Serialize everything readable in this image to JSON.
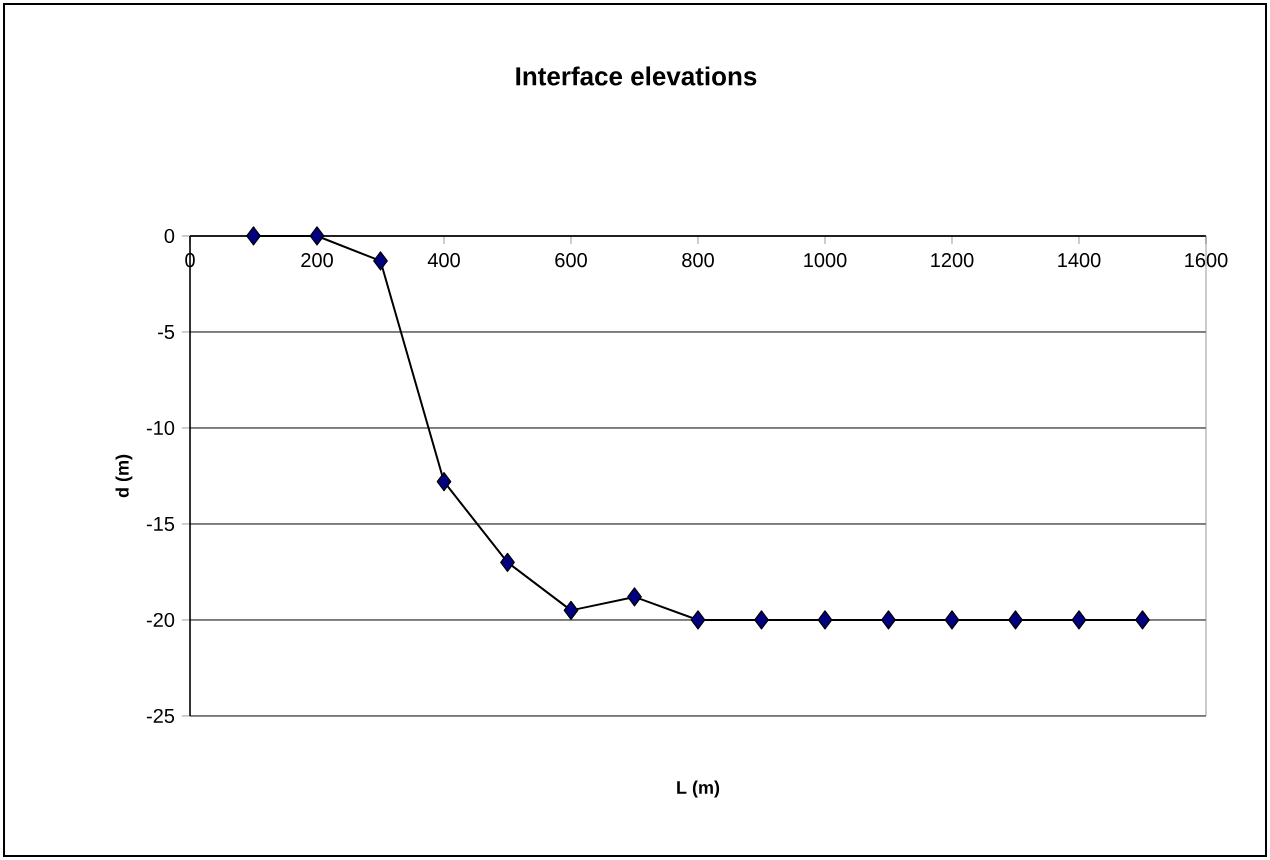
{
  "chart_data": {
    "type": "line",
    "title": "Interface elevations",
    "xlabel": "L (m)",
    "ylabel": "d (m)",
    "x": [
      100,
      200,
      300,
      400,
      500,
      600,
      700,
      800,
      900,
      1000,
      1100,
      1200,
      1300,
      1400,
      1500
    ],
    "series": [
      {
        "color": "#000080",
        "values": [
          0,
          0,
          -1.3,
          -12.8,
          -17,
          -19.5,
          -18.8,
          -20,
          -20,
          -20,
          -20,
          -20,
          -20,
          -20,
          -20
        ]
      }
    ],
    "xlim": [
      0,
      1600
    ],
    "ylim": [
      -25,
      0
    ],
    "xticks": [
      0,
      200,
      400,
      600,
      800,
      1000,
      1200,
      1400,
      1600
    ],
    "yticks": [
      -25,
      -20,
      -15,
      -10,
      -5,
      0
    ],
    "grid": "y",
    "marker": "diamond",
    "line_style": "solid"
  }
}
